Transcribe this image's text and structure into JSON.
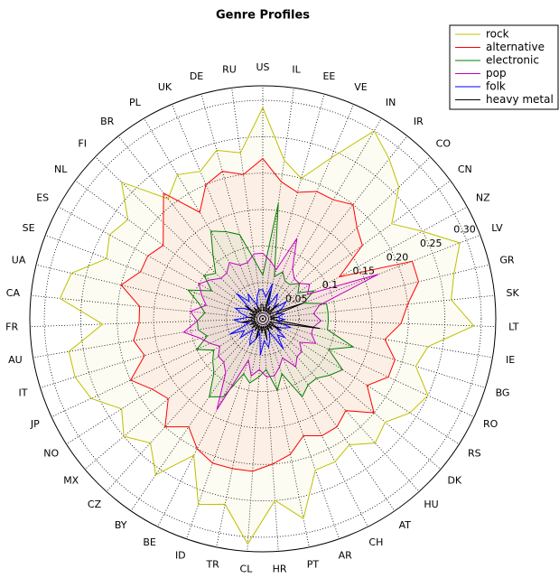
{
  "chart_data": {
    "type": "radar",
    "title": "Genre Profiles",
    "categories": [
      "US",
      "IL",
      "EE",
      "VE",
      "IN",
      "IR",
      "CO",
      "CN",
      "NZ",
      "LV",
      "GR",
      "SK",
      "LT",
      "IE",
      "BG",
      "RO",
      "RS",
      "DK",
      "HU",
      "AT",
      "CH",
      "AR",
      "PT",
      "HR",
      "CL",
      "TR",
      "ID",
      "BE",
      "BY",
      "CZ",
      "MX",
      "NO",
      "JP",
      "IT",
      "AU",
      "FR",
      "CA",
      "UA",
      "SE",
      "ES",
      "NL",
      "FI",
      "BR",
      "PL",
      "UK",
      "DE",
      "RU"
    ],
    "ylim": [
      0,
      0.32
    ],
    "yticks": [
      0.05,
      0.1,
      {
        "value": 0.15,
        "label": "0.15"
      },
      {
        "value": 0.2,
        "label": "0.20"
      },
      0.25,
      {
        "value": 0.3,
        "label": "0.30"
      }
    ],
    "grid": true,
    "legend": "upper right",
    "series": [
      {
        "name": "rock",
        "color": "#bfbf00",
        "values": [
          0.29,
          0.22,
          0.2,
          0.24,
          0.3,
          0.28,
          0.26,
          0.22,
          0.25,
          0.29,
          0.27,
          0.26,
          0.29,
          0.23,
          0.22,
          0.25,
          0.24,
          0.22,
          0.23,
          0.21,
          0.22,
          0.22,
          0.28,
          0.25,
          0.31,
          0.26,
          0.27,
          0.21,
          0.26,
          0.23,
          0.25,
          0.23,
          0.26,
          0.27,
          0.27,
          0.22,
          0.28,
          0.27,
          0.23,
          0.24,
          0.23,
          0.27,
          0.21,
          0.23,
          0.22,
          0.24,
          0.23
        ]
      },
      {
        "name": "alternative",
        "color": "#ff0000",
        "values": [
          0.22,
          0.19,
          0.18,
          0.19,
          0.19,
          0.2,
          0.18,
          0.17,
          0.12,
          0.22,
          0.22,
          0.2,
          0.19,
          0.17,
          0.19,
          0.19,
          0.17,
          0.2,
          0.17,
          0.18,
          0.18,
          0.17,
          0.19,
          0.2,
          0.21,
          0.21,
          0.21,
          0.2,
          0.18,
          0.2,
          0.17,
          0.18,
          0.2,
          0.17,
          0.18,
          0.17,
          0.17,
          0.2,
          0.18,
          0.18,
          0.17,
          0.19,
          0.22,
          0.17,
          0.2,
          0.21,
          0.2
        ]
      },
      {
        "name": "electronic",
        "color": "#008000",
        "values": [
          0.06,
          0.16,
          0.06,
          0.07,
          0.06,
          0.06,
          0.07,
          0.06,
          0.08,
          0.06,
          0.09,
          0.09,
          0.09,
          0.09,
          0.13,
          0.1,
          0.13,
          0.12,
          0.11,
          0.11,
          0.12,
          0.08,
          0.1,
          0.07,
          0.08,
          0.09,
          0.08,
          0.12,
          0.13,
          0.1,
          0.09,
          0.08,
          0.1,
          0.08,
          0.09,
          0.09,
          0.08,
          0.09,
          0.11,
          0.08,
          0.1,
          0.09,
          0.11,
          0.14,
          0.13,
          0.12,
          0.08
        ]
      },
      {
        "name": "pop",
        "color": "#bf00bf",
        "values": [
          0.09,
          0.08,
          0.07,
          0.12,
          0.08,
          0.07,
          0.07,
          0.08,
          0.07,
          0.17,
          0.08,
          0.07,
          0.08,
          0.07,
          0.07,
          0.08,
          0.06,
          0.07,
          0.07,
          0.08,
          0.06,
          0.07,
          0.08,
          0.08,
          0.07,
          0.08,
          0.06,
          0.14,
          0.09,
          0.08,
          0.08,
          0.07,
          0.08,
          0.09,
          0.11,
          0.09,
          0.1,
          0.08,
          0.09,
          0.1,
          0.09,
          0.08,
          0.08,
          0.09,
          0.08,
          0.08,
          0.09
        ]
      },
      {
        "name": "folk",
        "color": "#0000ff",
        "values": [
          0.04,
          0.03,
          0.05,
          0.02,
          0.04,
          0.03,
          0.02,
          0.04,
          0.03,
          0.02,
          0.03,
          0.02,
          0.03,
          0.02,
          0.04,
          0.03,
          0.02,
          0.04,
          0.03,
          0.05,
          0.02,
          0.03,
          0.04,
          0.03,
          0.05,
          0.02,
          0.03,
          0.04,
          0.03,
          0.02,
          0.04,
          0.03,
          0.05,
          0.02,
          0.03,
          0.04,
          0.02,
          0.03,
          0.04,
          0.03,
          0.02,
          0.05,
          0.03,
          0.04,
          0.02,
          0.03,
          0.04
        ]
      },
      {
        "name": "heavy metal",
        "color": "#000000",
        "values": [
          0.02,
          0.01,
          0.04,
          0.01,
          0.02,
          0.01,
          0.03,
          0.01,
          0.02,
          0.06,
          0.01,
          0.02,
          0.01,
          0.08,
          0.02,
          0.01,
          0.03,
          0.01,
          0.02,
          0.01,
          0.02,
          0.01,
          0.03,
          0.01,
          0.02,
          0.01,
          0.03,
          0.01,
          0.02,
          0.01,
          0.02,
          0.01,
          0.02,
          0.01,
          0.03,
          0.01,
          0.02,
          0.01,
          0.02,
          0.01,
          0.03,
          0.01,
          0.02,
          0.01,
          0.02,
          0.01,
          0.02
        ]
      }
    ]
  }
}
